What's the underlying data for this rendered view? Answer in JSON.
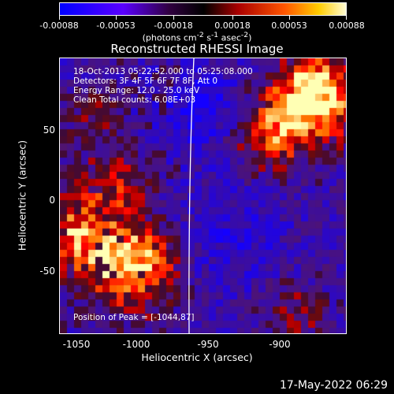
{
  "colorbar": {
    "tick_labels": [
      "-0.00088",
      "-0.00053",
      "-0.00018",
      "0.00018",
      "0.00053",
      "0.00088"
    ],
    "title_html": "(photons cm<sup>-2</sup> s<sup>-1</sup> asec<sup>-2</sup>)"
  },
  "plot": {
    "title": "Reconstructed RHESSI Image",
    "info_lines": [
      "18-Oct-2013 05:22:52.000 to 05:25:08.000",
      "Detectors: 3F 4F 5F 6F 7F 8F, Att 0",
      "Energy Range: 12.0 - 25.0 keV",
      "Clean    Total counts: 6.08E+03"
    ],
    "peak_label": "Position of Peak = [-1044,87]",
    "xlabel": "Heliocentric X (arcsec)",
    "ylabel": "Heliocentric Y (arcsec)",
    "xticks": [
      "-1050",
      "-1000",
      "-950",
      "-900"
    ],
    "yticks": [
      "50",
      "0",
      "-50"
    ]
  },
  "timestamp": "17-May-2022 06:29"
}
